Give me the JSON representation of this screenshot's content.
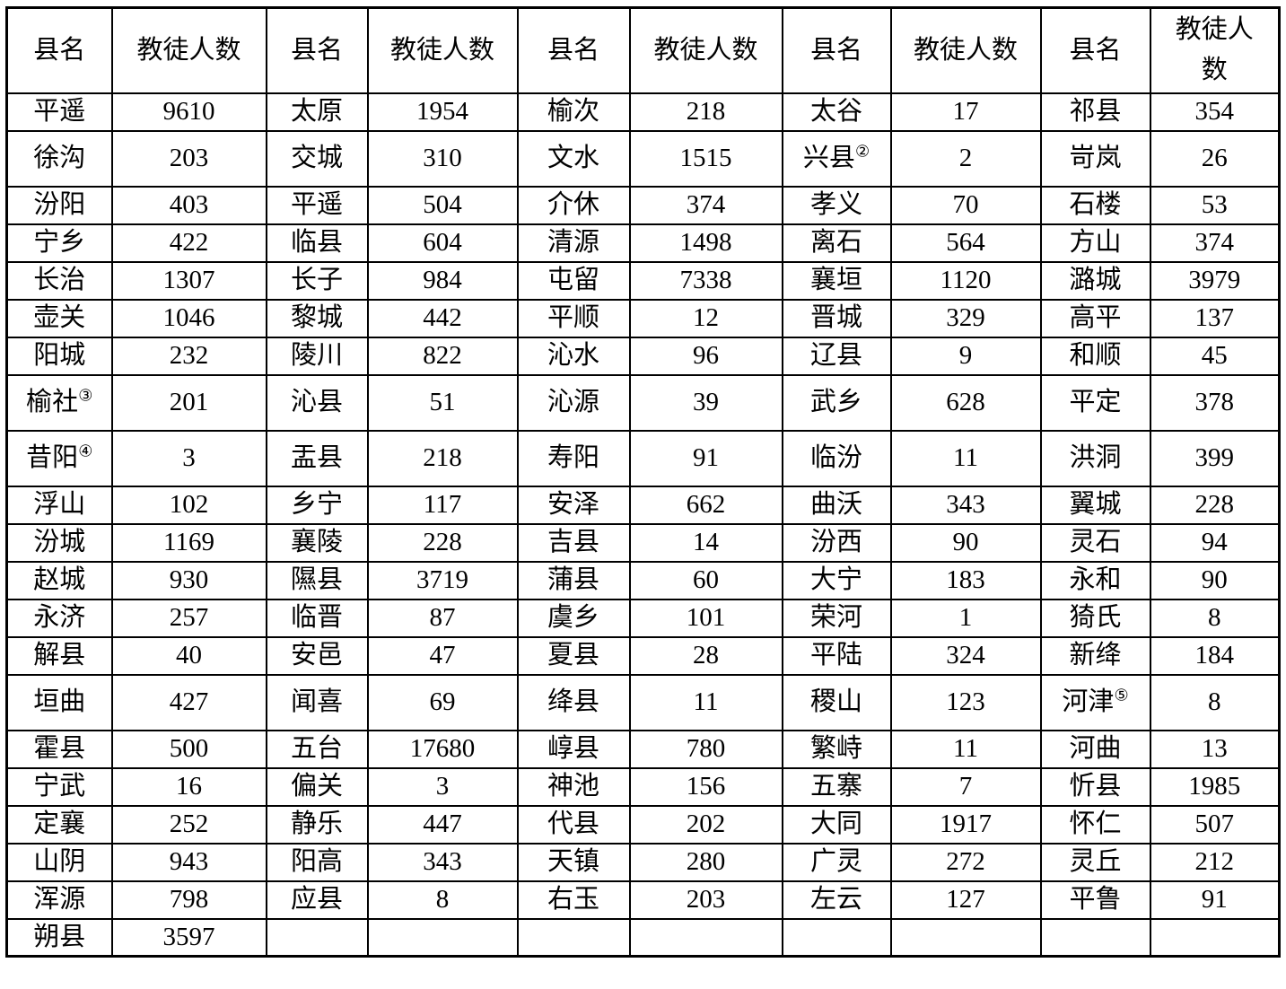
{
  "page": {
    "background": "#ffffff",
    "text_color": "#000000",
    "border_color": "#000000"
  },
  "table": {
    "header": {
      "county_label": "县名",
      "count_label": "教徒人数"
    },
    "footnote_markers": [
      "②",
      "③",
      "④",
      "⑤"
    ],
    "rows": [
      {
        "cells": [
          [
            "平遥",
            "9610"
          ],
          [
            "太原",
            "1954"
          ],
          [
            "榆次",
            "218"
          ],
          [
            "太谷",
            "17"
          ],
          [
            "祁县",
            "354"
          ]
        ]
      },
      {
        "cells": [
          [
            "徐沟",
            "203"
          ],
          [
            "交城",
            "310"
          ],
          [
            "文水",
            "1515"
          ],
          [
            "兴县",
            "2",
            "②"
          ],
          [
            "岢岚",
            "26"
          ]
        ]
      },
      {
        "cells": [
          [
            "汾阳",
            "403"
          ],
          [
            "平遥",
            "504"
          ],
          [
            "介休",
            "374"
          ],
          [
            "孝义",
            "70"
          ],
          [
            "石楼",
            "53"
          ]
        ]
      },
      {
        "cells": [
          [
            "宁乡",
            "422"
          ],
          [
            "临县",
            "604"
          ],
          [
            "清源",
            "1498"
          ],
          [
            "离石",
            "564"
          ],
          [
            "方山",
            "374"
          ]
        ]
      },
      {
        "cells": [
          [
            "长治",
            "1307"
          ],
          [
            "长子",
            "984"
          ],
          [
            "屯留",
            "7338"
          ],
          [
            "襄垣",
            "1120"
          ],
          [
            "潞城",
            "3979"
          ]
        ]
      },
      {
        "cells": [
          [
            "壶关",
            "1046"
          ],
          [
            "黎城",
            "442"
          ],
          [
            "平顺",
            "12"
          ],
          [
            "晋城",
            "329"
          ],
          [
            "高平",
            "137"
          ]
        ]
      },
      {
        "cells": [
          [
            "阳城",
            "232"
          ],
          [
            "陵川",
            "822"
          ],
          [
            "沁水",
            "96"
          ],
          [
            "辽县",
            "9"
          ],
          [
            "和顺",
            "45"
          ]
        ]
      },
      {
        "cells": [
          [
            "榆社",
            "201",
            "③"
          ],
          [
            "沁县",
            "51"
          ],
          [
            "沁源",
            "39"
          ],
          [
            "武乡",
            "628"
          ],
          [
            "平定",
            "378"
          ]
        ]
      },
      {
        "cells": [
          [
            "昔阳",
            "3",
            "④"
          ],
          [
            "盂县",
            "218"
          ],
          [
            "寿阳",
            "91"
          ],
          [
            "临汾",
            "11"
          ],
          [
            "洪洞",
            "399"
          ]
        ]
      },
      {
        "cells": [
          [
            "浮山",
            "102"
          ],
          [
            "乡宁",
            "117"
          ],
          [
            "安泽",
            "662"
          ],
          [
            "曲沃",
            "343"
          ],
          [
            "翼城",
            "228"
          ]
        ]
      },
      {
        "cells": [
          [
            "汾城",
            "1169"
          ],
          [
            "襄陵",
            "228"
          ],
          [
            "吉县",
            "14"
          ],
          [
            "汾西",
            "90"
          ],
          [
            "灵石",
            "94"
          ]
        ]
      },
      {
        "cells": [
          [
            "赵城",
            "930"
          ],
          [
            "隰县",
            "3719"
          ],
          [
            "蒲县",
            "60"
          ],
          [
            "大宁",
            "183"
          ],
          [
            "永和",
            "90"
          ]
        ]
      },
      {
        "cells": [
          [
            "永济",
            "257"
          ],
          [
            "临晋",
            "87"
          ],
          [
            "虞乡",
            "101"
          ],
          [
            "荣河",
            "1"
          ],
          [
            "猗氏",
            "8"
          ]
        ]
      },
      {
        "cells": [
          [
            "解县",
            "40"
          ],
          [
            "安邑",
            "47"
          ],
          [
            "夏县",
            "28"
          ],
          [
            "平陆",
            "324"
          ],
          [
            "新绛",
            "184"
          ]
        ]
      },
      {
        "cells": [
          [
            "垣曲",
            "427"
          ],
          [
            "闻喜",
            "69"
          ],
          [
            "绛县",
            "11"
          ],
          [
            "稷山",
            "123"
          ],
          [
            "河津",
            "8",
            "⑤"
          ]
        ]
      },
      {
        "cells": [
          [
            "霍县",
            "500"
          ],
          [
            "五台",
            "17680"
          ],
          [
            "崞县",
            "780"
          ],
          [
            "繁峙",
            "11"
          ],
          [
            "河曲",
            "13"
          ]
        ]
      },
      {
        "cells": [
          [
            "宁武",
            "16"
          ],
          [
            "偏关",
            "3"
          ],
          [
            "神池",
            "156"
          ],
          [
            "五寨",
            "7"
          ],
          [
            "忻县",
            "1985"
          ]
        ]
      },
      {
        "cells": [
          [
            "定襄",
            "252"
          ],
          [
            "静乐",
            "447"
          ],
          [
            "代县",
            "202"
          ],
          [
            "大同",
            "1917"
          ],
          [
            "怀仁",
            "507"
          ]
        ]
      },
      {
        "cells": [
          [
            "山阴",
            "943"
          ],
          [
            "阳高",
            "343"
          ],
          [
            "天镇",
            "280"
          ],
          [
            "广灵",
            "272"
          ],
          [
            "灵丘",
            "212"
          ]
        ]
      },
      {
        "cells": [
          [
            "浑源",
            "798"
          ],
          [
            "应县",
            "8"
          ],
          [
            "右玉",
            "203"
          ],
          [
            "左云",
            "127"
          ],
          [
            "平鲁",
            "91"
          ]
        ]
      },
      {
        "cells": [
          [
            "朔县",
            "3597"
          ],
          [
            "",
            ""
          ],
          [
            "",
            ""
          ],
          [
            "",
            ""
          ],
          [
            "",
            ""
          ]
        ]
      }
    ]
  }
}
